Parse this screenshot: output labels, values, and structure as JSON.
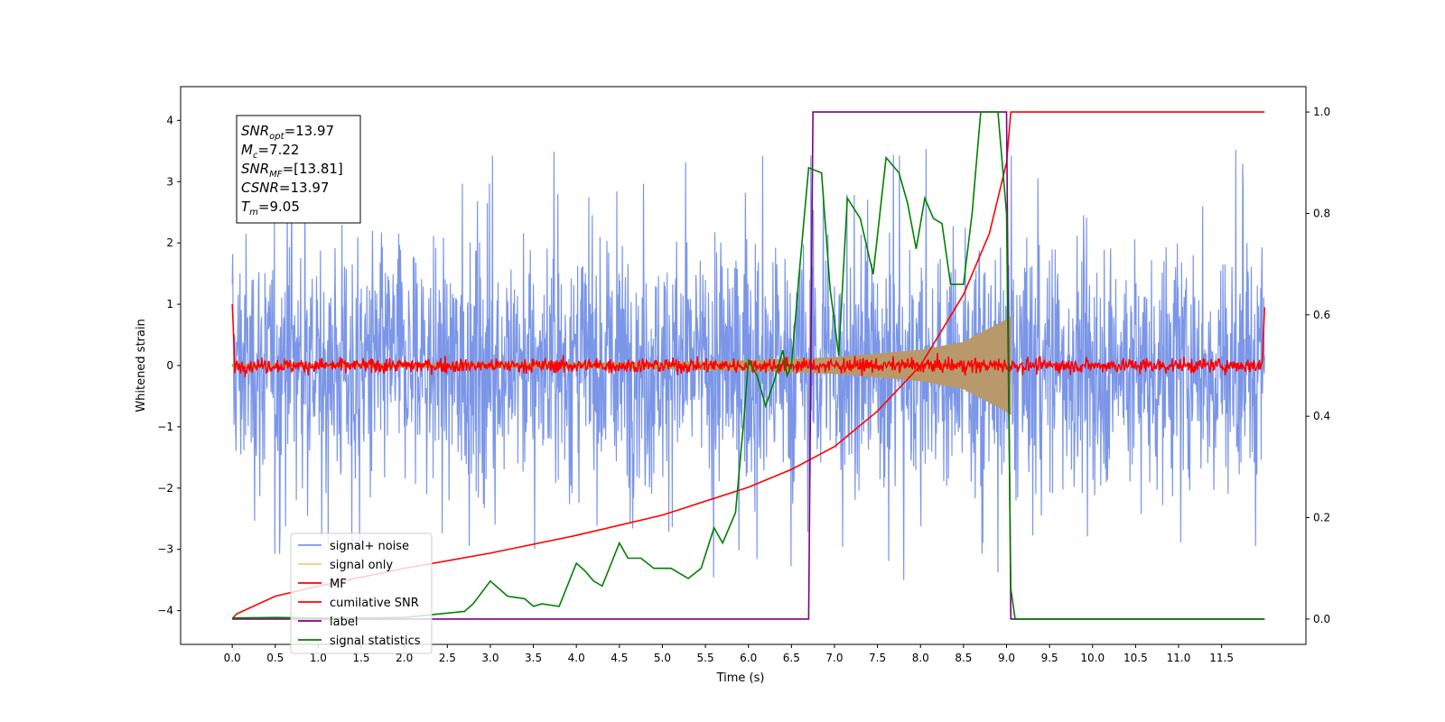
{
  "chart_data": {
    "type": "line",
    "xlabel": "Time (s)",
    "ylabel": "Whitened strain",
    "xlim": [
      -0.6,
      12.48
    ],
    "ylim_left": [
      -4.55,
      4.55
    ],
    "ylim_right": [
      -0.05,
      1.05
    ],
    "x_ticks": [
      0.0,
      0.5,
      1.0,
      1.5,
      2.0,
      2.5,
      3.0,
      3.5,
      4.0,
      4.5,
      5.0,
      5.5,
      6.0,
      6.5,
      7.0,
      7.5,
      8.0,
      8.5,
      9.0,
      9.5,
      10.0,
      10.5,
      11.0,
      11.5
    ],
    "x_tick_labels": [
      "0.0",
      "0.5",
      "1.0",
      "1.5",
      "2.0",
      "2.5",
      "3.0",
      "3.5",
      "4.0",
      "4.5",
      "5.0",
      "5.5",
      "6.0",
      "6.5",
      "7.0",
      "7.5",
      "8.0",
      "8.5",
      "9.0",
      "9.5",
      "10.0",
      "10.5",
      "11.0",
      "11.5"
    ],
    "y_left_ticks": [
      4,
      3,
      2,
      1,
      0,
      -1,
      -2,
      -3,
      -4
    ],
    "y_left_tick_labels": [
      "4",
      "3",
      "2",
      "1",
      "0",
      "−1",
      "−2",
      "−3",
      "−4"
    ],
    "y_right_ticks": [
      1.0,
      0.8,
      0.6,
      0.4,
      0.2,
      0.0
    ],
    "y_right_tick_labels": [
      "1.0",
      "0.8",
      "0.6",
      "0.4",
      "0.2",
      "0.0"
    ],
    "annotation_box": {
      "lines": [
        {
          "sym": "SNR",
          "sub": "opt",
          "val": "=13.97"
        },
        {
          "sym": "M",
          "sub": "c",
          "val": "=7.22"
        },
        {
          "sym": "SNR",
          "sub": "MF",
          "val": "=[13.81]"
        },
        {
          "sym": "CSNR",
          "sub": "",
          "val": "=13.97"
        },
        {
          "sym": "T",
          "sub": "m",
          "val": "=9.05"
        }
      ]
    },
    "legend": {
      "placement": "lower-left",
      "entries": [
        {
          "label": "signal+ noise",
          "color": "#7b96e8"
        },
        {
          "label": "signal only",
          "color": "#f5c97a"
        },
        {
          "label": "MF",
          "color": "#ff0000"
        },
        {
          "label": "cumilative SNR",
          "color": "#ff0000"
        },
        {
          "label": "label",
          "color": "#800080"
        },
        {
          "label": "signal statistics",
          "color": "#008000"
        }
      ]
    },
    "series": [
      {
        "name": "signal+ noise",
        "axis": "left",
        "color": "#7b96e8",
        "kind": "noise",
        "x_range": [
          0.0,
          12.0
        ],
        "typical_envelope": 2.4,
        "max_peak": 3.7,
        "min_trough": -3.9
      },
      {
        "name": "signal only",
        "axis": "left",
        "color": "#b8996c",
        "kind": "chirp",
        "x_range": [
          0.0,
          9.05
        ],
        "amplitude_points": [
          [
            0.0,
            0.02
          ],
          [
            5.0,
            0.05
          ],
          [
            6.0,
            0.08
          ],
          [
            7.0,
            0.13
          ],
          [
            8.0,
            0.25
          ],
          [
            8.5,
            0.38
          ],
          [
            9.0,
            0.75
          ],
          [
            9.05,
            0.8
          ]
        ]
      },
      {
        "name": "MF",
        "axis": "left",
        "color": "#ff0000",
        "kind": "noise",
        "x_range": [
          0.0,
          12.0
        ],
        "typical_envelope": 0.12,
        "start_value": 1.0,
        "end_value": 0.95
      },
      {
        "name": "cumilative SNR",
        "axis": "right",
        "color": "#ff0000",
        "points": [
          [
            0.0,
            0.0
          ],
          [
            0.05,
            0.01
          ],
          [
            0.5,
            0.045
          ],
          [
            1.0,
            0.065
          ],
          [
            2.0,
            0.1
          ],
          [
            3.0,
            0.13
          ],
          [
            4.0,
            0.165
          ],
          [
            5.0,
            0.205
          ],
          [
            6.0,
            0.26
          ],
          [
            6.5,
            0.295
          ],
          [
            7.0,
            0.34
          ],
          [
            7.5,
            0.41
          ],
          [
            8.0,
            0.5
          ],
          [
            8.5,
            0.64
          ],
          [
            8.8,
            0.76
          ],
          [
            9.0,
            0.9
          ],
          [
            9.05,
            1.0
          ],
          [
            12.0,
            1.0
          ]
        ]
      },
      {
        "name": "label",
        "axis": "right",
        "color": "#800080",
        "points": [
          [
            0.0,
            0.0
          ],
          [
            6.7,
            0.0
          ],
          [
            6.75,
            1.0
          ],
          [
            9.0,
            1.0
          ],
          [
            9.05,
            0.0
          ],
          [
            12.0,
            0.0
          ]
        ]
      },
      {
        "name": "signal statistics",
        "axis": "right",
        "color": "#008000",
        "points": [
          [
            0.0,
            0.002
          ],
          [
            0.5,
            0.003
          ],
          [
            1.0,
            0.002
          ],
          [
            1.5,
            0.002
          ],
          [
            2.0,
            0.003
          ],
          [
            2.4,
            0.01
          ],
          [
            2.7,
            0.015
          ],
          [
            2.8,
            0.03
          ],
          [
            3.0,
            0.075
          ],
          [
            3.2,
            0.045
          ],
          [
            3.4,
            0.04
          ],
          [
            3.5,
            0.025
          ],
          [
            3.6,
            0.03
          ],
          [
            3.8,
            0.025
          ],
          [
            4.0,
            0.11
          ],
          [
            4.1,
            0.095
          ],
          [
            4.2,
            0.075
          ],
          [
            4.3,
            0.065
          ],
          [
            4.5,
            0.15
          ],
          [
            4.6,
            0.12
          ],
          [
            4.75,
            0.12
          ],
          [
            4.9,
            0.1
          ],
          [
            5.1,
            0.1
          ],
          [
            5.3,
            0.08
          ],
          [
            5.45,
            0.1
          ],
          [
            5.6,
            0.18
          ],
          [
            5.7,
            0.15
          ],
          [
            5.85,
            0.21
          ],
          [
            5.95,
            0.4
          ],
          [
            6.0,
            0.51
          ],
          [
            6.1,
            0.48
          ],
          [
            6.2,
            0.42
          ],
          [
            6.3,
            0.47
          ],
          [
            6.4,
            0.53
          ],
          [
            6.45,
            0.48
          ],
          [
            6.5,
            0.5
          ],
          [
            6.6,
            0.7
          ],
          [
            6.7,
            0.89
          ],
          [
            6.85,
            0.88
          ],
          [
            6.95,
            0.65
          ],
          [
            7.05,
            0.52
          ],
          [
            7.15,
            0.83
          ],
          [
            7.3,
            0.79
          ],
          [
            7.45,
            0.68
          ],
          [
            7.6,
            0.91
          ],
          [
            7.75,
            0.88
          ],
          [
            7.85,
            0.82
          ],
          [
            7.95,
            0.73
          ],
          [
            8.05,
            0.83
          ],
          [
            8.15,
            0.79
          ],
          [
            8.25,
            0.78
          ],
          [
            8.35,
            0.66
          ],
          [
            8.5,
            0.66
          ],
          [
            8.6,
            0.8
          ],
          [
            8.7,
            1.0
          ],
          [
            8.9,
            1.0
          ],
          [
            9.0,
            0.8
          ],
          [
            9.05,
            0.06
          ],
          [
            9.1,
            0.0
          ],
          [
            12.0,
            0.0
          ]
        ]
      }
    ]
  }
}
